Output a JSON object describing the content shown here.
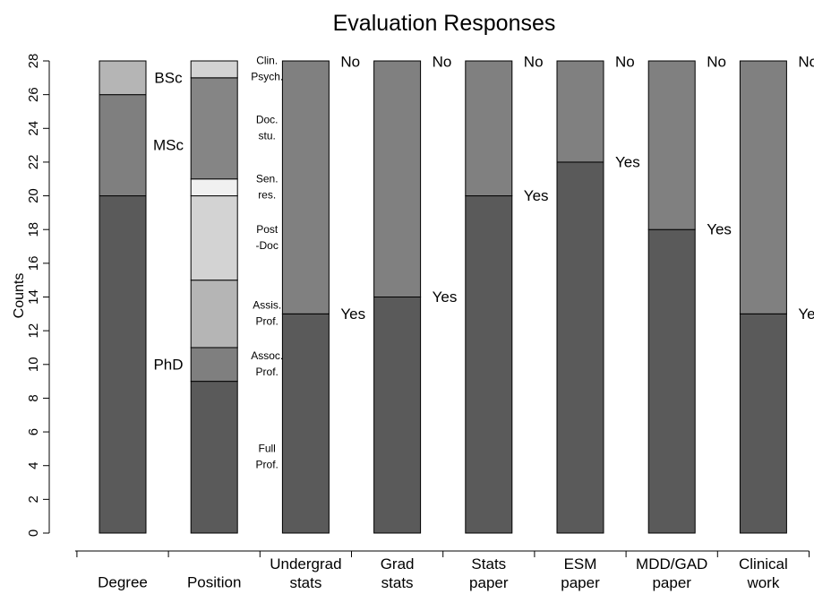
{
  "chart_data": {
    "type": "bar",
    "stacked": true,
    "title": "Evaluation Responses",
    "xlabel": "",
    "ylabel": "Counts",
    "ylim": [
      0,
      28
    ],
    "yticks": [
      0,
      2,
      4,
      6,
      8,
      10,
      12,
      14,
      16,
      18,
      20,
      22,
      24,
      26,
      28
    ],
    "grid": false,
    "colors": {
      "phd": "#5a5a5a",
      "msc": "#7f7f7f",
      "bsc": "#b5b5b5",
      "full_prof": "#5a5a5a",
      "assoc_prof": "#7f7f7f",
      "assis_prof": "#b5b5b5",
      "post_doc": "#d3d3d3",
      "sen_res": "#f0f0f0",
      "doc_stu": "#858585",
      "clin_psych": "#d3d3d3",
      "yes": "#5a5a5a",
      "no": "#808080"
    },
    "bars": [
      {
        "category": [
          "Degree"
        ],
        "label_style": "large",
        "segments": [
          {
            "label": [
              "PhD"
            ],
            "value": 20,
            "color": "#5a5a5a"
          },
          {
            "label": [
              "MSc"
            ],
            "value": 6,
            "color": "#7f7f7f"
          },
          {
            "label": [
              "BSc"
            ],
            "value": 2,
            "color": "#b5b5b5"
          }
        ]
      },
      {
        "category": [
          "Position"
        ],
        "label_style": "small",
        "segments": [
          {
            "label": [
              "Full",
              "Prof."
            ],
            "value": 9,
            "color": "#5a5a5a"
          },
          {
            "label": [
              "Assoc.",
              "Prof."
            ],
            "value": 2,
            "color": "#7f7f7f"
          },
          {
            "label": [
              "Assis.",
              "Prof."
            ],
            "value": 4,
            "color": "#b5b5b5"
          },
          {
            "label": [
              "Post",
              "-Doc"
            ],
            "value": 5,
            "color": "#d3d3d3"
          },
          {
            "label": [
              "Sen.",
              "res."
            ],
            "value": 1,
            "color": "#f0f0f0"
          },
          {
            "label": [
              "Doc.",
              "stu."
            ],
            "value": 6,
            "color": "#858585"
          },
          {
            "label": [
              "Clin.",
              "Psych."
            ],
            "value": 1,
            "color": "#d3d3d3"
          }
        ]
      },
      {
        "category": [
          "Undergrad",
          "stats"
        ],
        "label_style": "yesno",
        "segments": [
          {
            "label": [
              "Yes"
            ],
            "value": 13,
            "color": "#5a5a5a"
          },
          {
            "label": [
              "No"
            ],
            "value": 15,
            "color": "#808080"
          }
        ]
      },
      {
        "category": [
          "Grad",
          "stats"
        ],
        "label_style": "yesno",
        "segments": [
          {
            "label": [
              "Yes"
            ],
            "value": 14,
            "color": "#5a5a5a"
          },
          {
            "label": [
              "No"
            ],
            "value": 14,
            "color": "#808080"
          }
        ]
      },
      {
        "category": [
          "Stats",
          "paper"
        ],
        "label_style": "yesno",
        "segments": [
          {
            "label": [
              "Yes"
            ],
            "value": 20,
            "color": "#5a5a5a"
          },
          {
            "label": [
              "No"
            ],
            "value": 8,
            "color": "#808080"
          }
        ]
      },
      {
        "category": [
          "ESM",
          "paper"
        ],
        "label_style": "yesno",
        "segments": [
          {
            "label": [
              "Yes"
            ],
            "value": 22,
            "color": "#5a5a5a"
          },
          {
            "label": [
              "No"
            ],
            "value": 6,
            "color": "#808080"
          }
        ]
      },
      {
        "category": [
          "MDD/GAD",
          "paper"
        ],
        "label_style": "yesno",
        "segments": [
          {
            "label": [
              "Yes"
            ],
            "value": 18,
            "color": "#5a5a5a"
          },
          {
            "label": [
              "No"
            ],
            "value": 10,
            "color": "#808080"
          }
        ]
      },
      {
        "category": [
          "Clinical",
          "work"
        ],
        "label_style": "yesno",
        "segments": [
          {
            "label": [
              "Yes"
            ],
            "value": 13,
            "color": "#5a5a5a"
          },
          {
            "label": [
              "No"
            ],
            "value": 15,
            "color": "#808080"
          }
        ]
      }
    ]
  }
}
